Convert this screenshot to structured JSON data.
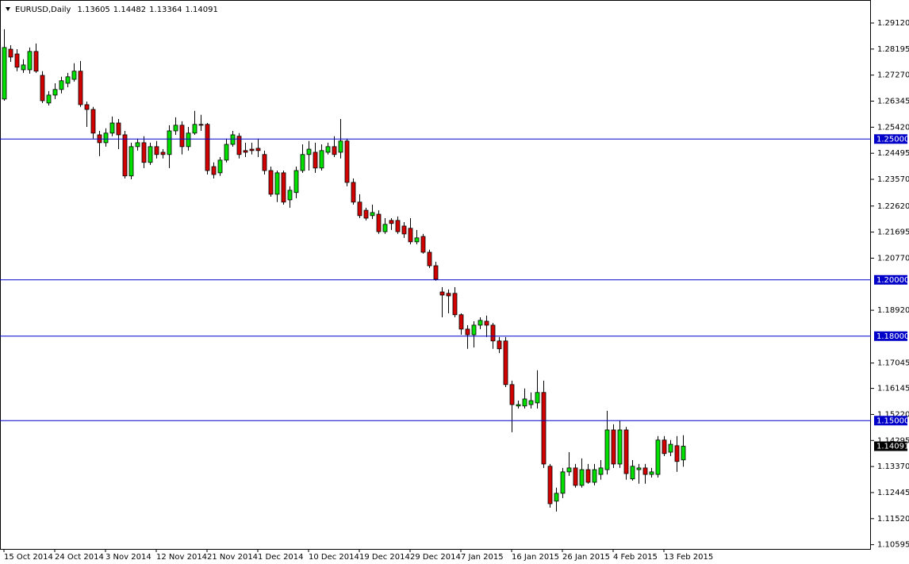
{
  "chart_data": {
    "type": "candlestick",
    "title": "EURUSD,Daily",
    "categories": [
      "15 Oct 2014",
      null,
      null,
      null,
      null,
      null,
      null,
      null,
      "24 Oct 2014",
      null,
      null,
      null,
      null,
      null,
      null,
      null,
      "3 Nov 2014",
      null,
      null,
      null,
      null,
      null,
      null,
      null,
      "12 Nov 2014",
      null,
      null,
      null,
      null,
      null,
      null,
      null,
      "21 Nov 2014",
      null,
      null,
      null,
      null,
      null,
      null,
      null,
      "1 Dec 2014",
      null,
      null,
      null,
      null,
      null,
      null,
      null,
      "10 Dec 2014",
      null,
      null,
      null,
      null,
      null,
      null,
      null,
      "19 Dec 2014",
      null,
      null,
      null,
      null,
      null,
      null,
      null,
      "29 Dec 2014",
      null,
      null,
      null,
      null,
      null,
      null,
      null,
      "7 Jan 2015",
      null,
      null,
      null,
      null,
      null,
      null,
      null,
      "16 Jan 2015",
      null,
      null,
      null,
      null,
      null,
      null,
      null,
      "26 Jan 2015",
      null,
      null,
      null,
      null,
      null,
      null,
      null,
      "4 Feb 2015",
      null,
      null,
      null,
      null,
      null,
      null,
      null,
      "13 Feb 2015",
      null,
      null,
      null
    ],
    "open": [
      1.2642,
      1.2819,
      1.2802,
      1.2746,
      1.2746,
      1.2811,
      1.2726,
      1.2628,
      1.2656,
      1.2676,
      1.2698,
      1.2712,
      1.2741,
      1.2622,
      1.2605,
      1.2515,
      1.2487,
      1.2521,
      1.2557,
      1.2515,
      1.2369,
      1.2473,
      1.2487,
      1.2417,
      1.2473,
      1.2453,
      1.2445,
      1.2529,
      1.2549,
      1.2473,
      1.2521,
      1.2552,
      1.2552,
      1.2402,
      1.238,
      1.2425,
      1.2481,
      1.251,
      1.2459,
      1.2464,
      1.2467,
      1.2445,
      1.2388,
      1.2304,
      1.238,
      1.2284,
      1.231,
      1.2388,
      1.2445,
      1.2453,
      1.2397,
      1.2453,
      1.2473,
      1.2453,
      1.2493,
      1.2346,
      1.2276,
      1.2247,
      1.2228,
      1.2233,
      1.2171,
      1.2211,
      1.2211,
      1.2191,
      1.2183,
      1.2135,
      1.2154,
      1.2098,
      1.205,
      1.1957,
      1.1952,
      1.1952,
      1.1876,
      1.1825,
      1.1805,
      1.1839,
      1.1853,
      1.1839,
      1.1783,
      1.1783,
      1.1628,
      1.1552,
      1.1552,
      1.1557,
      1.1563,
      1.16,
      1.1338,
      1.1214,
      1.1242,
      1.1318,
      1.1332,
      1.127,
      1.1326,
      1.1281,
      1.1309,
      1.1326,
      1.1467,
      1.1346,
      1.1467,
      1.1293,
      1.1326,
      1.1332,
      1.1309,
      1.1309,
      1.1431,
      1.1388,
      1.1411,
      1.13605
    ],
    "high": [
      1.289,
      1.2833,
      1.2819,
      1.2783,
      1.2825,
      1.2839,
      1.2741,
      1.267,
      1.2698,
      1.2721,
      1.2735,
      1.2769,
      1.2777,
      1.2633,
      1.2614,
      1.2529,
      1.2538,
      1.258,
      1.2571,
      1.2529,
      1.2487,
      1.2501,
      1.251,
      1.2487,
      1.2493,
      1.2464,
      1.2549,
      1.2577,
      1.2563,
      1.2543,
      1.26,
      1.2586,
      1.2557,
      1.2417,
      1.2436,
      1.2501,
      1.2529,
      1.2521,
      1.2487,
      1.2487,
      1.2501,
      1.2459,
      1.2402,
      1.2388,
      1.2388,
      1.2332,
      1.2402,
      1.2481,
      1.2493,
      1.2487,
      1.2481,
      1.2487,
      1.251,
      1.2571,
      1.2501,
      1.236,
      1.2304,
      1.2256,
      1.2267,
      1.2247,
      1.2219,
      1.2219,
      1.2225,
      1.2205,
      1.2219,
      1.2177,
      1.2163,
      1.2107,
      1.2064,
      1.1974,
      1.1966,
      1.1974,
      1.1881,
      1.1839,
      1.1853,
      1.1867,
      1.1873,
      1.1847,
      1.1797,
      1.1797,
      1.1642,
      1.1571,
      1.1614,
      1.16,
      1.1679,
      1.1642,
      1.1346,
      1.1262,
      1.1332,
      1.1388,
      1.1346,
      1.1366,
      1.1346,
      1.1346,
      1.136,
      1.1535,
      1.1487,
      1.1501,
      1.1478,
      1.136,
      1.1346,
      1.1346,
      1.1332,
      1.1445,
      1.1445,
      1.1431,
      1.1445,
      1.14482
    ],
    "low": [
      1.2636,
      1.2774,
      1.2741,
      1.2735,
      1.2732,
      1.2735,
      1.2628,
      1.2619,
      1.2642,
      1.2662,
      1.2684,
      1.2704,
      1.2614,
      1.2543,
      1.2501,
      1.2439,
      1.2473,
      1.251,
      1.2464,
      1.236,
      1.2357,
      1.2459,
      1.2397,
      1.2408,
      1.2431,
      1.2431,
      1.2397,
      1.2515,
      1.2445,
      1.2459,
      1.2515,
      1.2529,
      1.2374,
      1.236,
      1.2369,
      1.2417,
      1.2473,
      1.2431,
      1.2436,
      1.2445,
      1.2436,
      1.2374,
      1.2295,
      1.2276,
      1.2267,
      1.2256,
      1.229,
      1.238,
      1.2388,
      1.238,
      1.2388,
      1.2445,
      1.2436,
      1.2431,
      1.2332,
      1.2267,
      1.2219,
      1.2211,
      1.2216,
      1.2163,
      1.2163,
      1.2177,
      1.2163,
      1.2149,
      1.2126,
      1.2126,
      1.2093,
      1.2042,
      1.1997,
      1.1867,
      1.1881,
      1.1867,
      1.1805,
      1.1755,
      1.176,
      1.1825,
      1.1797,
      1.1755,
      1.174,
      1.1619,
      1.1459,
      1.1543,
      1.1543,
      1.1543,
      1.1543,
      1.1332,
      1.1191,
      1.1177,
      1.1225,
      1.1304,
      1.1262,
      1.1262,
      1.1276,
      1.127,
      1.129,
      1.1309,
      1.1332,
      1.1332,
      1.129,
      1.1287,
      1.1276,
      1.1276,
      1.1298,
      1.1298,
      1.1374,
      1.1374,
      1.1318,
      1.13364
    ],
    "close": [
      1.2825,
      1.2791,
      1.2755,
      1.2763,
      1.2811,
      1.2741,
      1.2636,
      1.2656,
      1.2676,
      1.2707,
      1.2721,
      1.2741,
      1.2622,
      1.2605,
      1.2521,
      1.2487,
      1.2521,
      1.2557,
      1.2515,
      1.2369,
      1.2473,
      1.2487,
      1.2417,
      1.2473,
      1.2445,
      1.2445,
      1.2529,
      1.2549,
      1.2473,
      1.2521,
      1.2552,
      1.2549,
      1.2388,
      1.2374,
      1.2425,
      1.2481,
      1.2515,
      1.2445,
      1.2453,
      1.2459,
      1.2459,
      1.2388,
      1.2304,
      1.238,
      1.2276,
      1.2318,
      1.2388,
      1.2445,
      1.2464,
      1.2397,
      1.2459,
      1.2473,
      1.2445,
      1.2493,
      1.2346,
      1.2276,
      1.2228,
      1.2219,
      1.2239,
      1.2171,
      1.2197,
      1.22,
      1.2171,
      1.2163,
      1.2135,
      1.2149,
      1.2098,
      1.205,
      1.2002,
      1.1946,
      1.1943,
      1.1876,
      1.1825,
      1.1805,
      1.1839,
      1.1856,
      1.1839,
      1.1783,
      1.1755,
      1.1628,
      1.1557,
      1.1557,
      1.1577,
      1.1571,
      1.16,
      1.1346,
      1.1205,
      1.1242,
      1.1318,
      1.1332,
      1.127,
      1.1326,
      1.1281,
      1.1326,
      1.1332,
      1.1467,
      1.1346,
      1.1467,
      1.1312,
      1.1338,
      1.1332,
      1.1309,
      1.1318,
      1.1431,
      1.1383,
      1.1416,
      1.1355,
      1.14091
    ],
    "up_color": "#00e000",
    "down_color": "#d40000",
    "level_color": "#0000c8",
    "ylim": [
      1.10444,
      1.29937
    ],
    "yticks": [
      {
        "value": 1.2912,
        "label": "1.29120"
      },
      {
        "value": 1.28195,
        "label": "1.28195"
      },
      {
        "value": 1.2727,
        "label": "1.27270"
      },
      {
        "value": 1.26345,
        "label": "1.26345"
      },
      {
        "value": 1.2542,
        "label": "1.25420"
      },
      {
        "value": 1.24495,
        "label": "1.24495"
      },
      {
        "value": 1.2357,
        "label": "1.23570"
      },
      {
        "value": 1.2262,
        "label": "1.22620"
      },
      {
        "value": 1.21695,
        "label": "1.21695"
      },
      {
        "value": 1.2077,
        "label": "1.20770"
      },
      {
        "value": 1.1892,
        "label": "1.18920"
      },
      {
        "value": 1.17045,
        "label": "1.17045"
      },
      {
        "value": 1.16145,
        "label": "1.16145"
      },
      {
        "value": 1.1522,
        "label": "1.15220"
      },
      {
        "value": 1.14295,
        "label": "1.14295"
      },
      {
        "value": 1.1337,
        "label": "1.13370"
      },
      {
        "value": 1.12445,
        "label": "1.12445"
      },
      {
        "value": 1.1152,
        "label": "1.11520"
      },
      {
        "value": 1.10595,
        "label": "1.10595"
      }
    ],
    "levels": [
      {
        "value": 1.25,
        "label": "1.25000"
      },
      {
        "value": 1.2,
        "label": "1.20000"
      },
      {
        "value": 1.18,
        "label": "1.18000"
      },
      {
        "value": 1.15,
        "label": "1.15000"
      }
    ]
  }
}
